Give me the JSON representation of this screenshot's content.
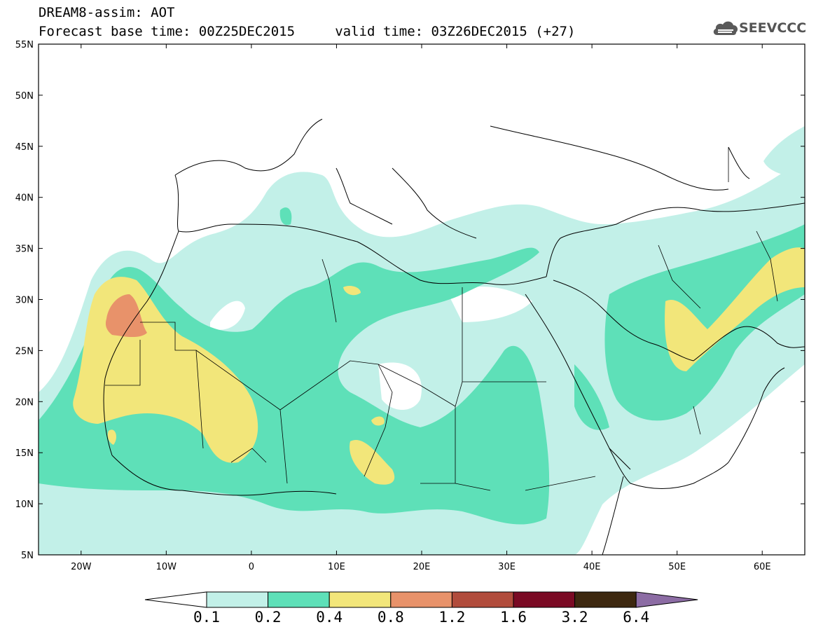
{
  "header": {
    "line1": "DREAM8-assim: AOT",
    "line2": "Forecast base time: 00Z25DEC2015     valid time: 03Z26DEC2015 (+27)"
  },
  "logo": {
    "text": "SEEVCCC",
    "icon": "cloud-icon"
  },
  "map": {
    "lon_range": [
      -25,
      65
    ],
    "lat_range": [
      5,
      55
    ],
    "lat_ticks": [
      {
        "v": 55,
        "label": "55N"
      },
      {
        "v": 50,
        "label": "50N"
      },
      {
        "v": 45,
        "label": "45N"
      },
      {
        "v": 40,
        "label": "40N"
      },
      {
        "v": 35,
        "label": "35N"
      },
      {
        "v": 30,
        "label": "30N"
      },
      {
        "v": 25,
        "label": "25N"
      },
      {
        "v": 20,
        "label": "20N"
      },
      {
        "v": 15,
        "label": "15N"
      },
      {
        "v": 10,
        "label": "10N"
      },
      {
        "v": 5,
        "label": "5N"
      }
    ],
    "lon_ticks": [
      {
        "v": -20,
        "label": "20W"
      },
      {
        "v": -10,
        "label": "10W"
      },
      {
        "v": 0,
        "label": "0"
      },
      {
        "v": 10,
        "label": "10E"
      },
      {
        "v": 20,
        "label": "20E"
      },
      {
        "v": 30,
        "label": "30E"
      },
      {
        "v": 40,
        "label": "40E"
      },
      {
        "v": 50,
        "label": "50E"
      },
      {
        "v": 60,
        "label": "60E"
      }
    ]
  },
  "colorbar": {
    "labels": [
      "0.1",
      "0.2",
      "0.4",
      "0.8",
      "1.2",
      "1.6",
      "3.2",
      "6.4"
    ],
    "colors": [
      "#ffffff",
      "#c2f0e8",
      "#5ee0b8",
      "#f2e67a",
      "#e8926a",
      "#b14c3c",
      "#7a0a24",
      "#3d2810",
      "#8c6ca4"
    ]
  }
}
